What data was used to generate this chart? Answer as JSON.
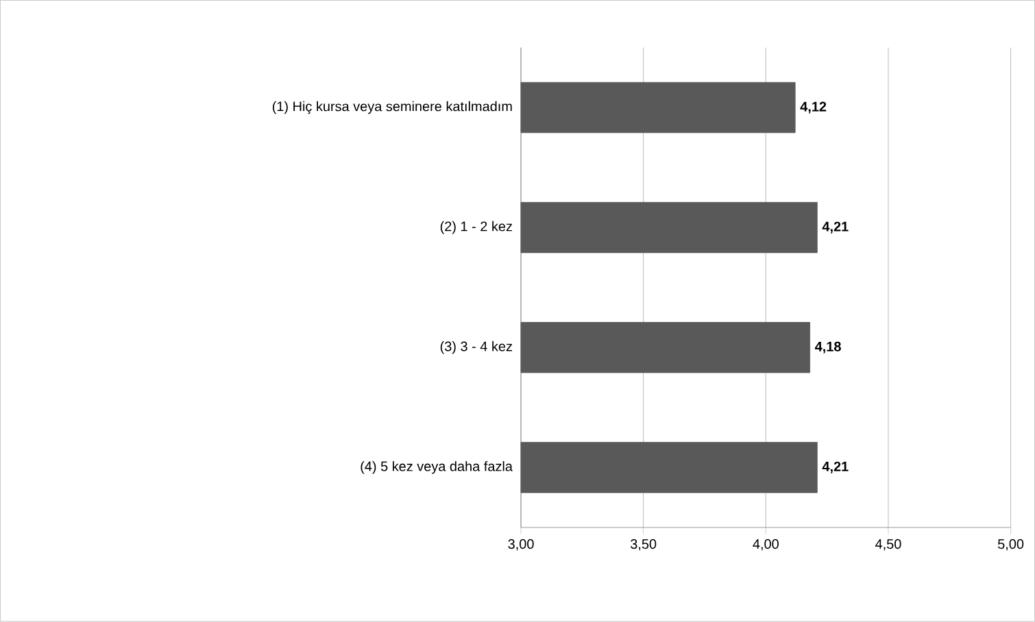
{
  "chart_data": {
    "type": "bar",
    "orientation": "horizontal",
    "categories": [
      "(1) Hiç kursa veya seminere katılmadım",
      "(2) 1 - 2 kez",
      "(3) 3 - 4 kez",
      "(4) 5 kez veya daha fazla"
    ],
    "values": [
      4.12,
      4.21,
      4.18,
      4.21
    ],
    "value_labels": [
      "4,12",
      "4,21",
      "4,18",
      "4,21"
    ],
    "color": "#595959",
    "xlim": [
      3,
      5
    ],
    "xticks": [
      {
        "value": 3,
        "label": "3,00"
      },
      {
        "value": 3.5,
        "label": "3,50"
      },
      {
        "value": 4,
        "label": "4,00"
      },
      {
        "value": 4.5,
        "label": "4,50"
      },
      {
        "value": 5,
        "label": "5,00"
      }
    ],
    "grid": "x"
  }
}
